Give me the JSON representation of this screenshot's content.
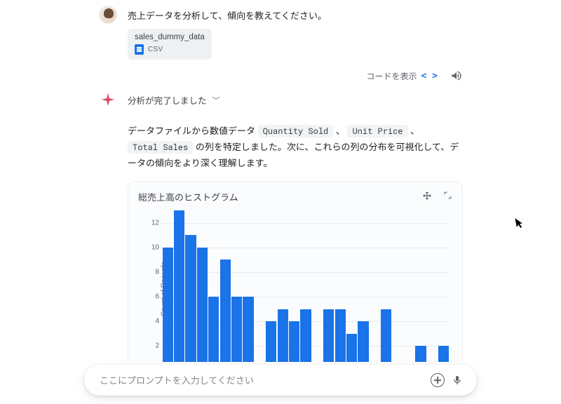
{
  "user": {
    "message": "売上データを分析して、傾向を教えてください。"
  },
  "attachment": {
    "filename": "sales_dummy_data",
    "ext": "CSV"
  },
  "actions": {
    "show_code": "コードを表示"
  },
  "assistant": {
    "status": "分析が完了しました",
    "text_pre": "データファイルから数値データ ",
    "code1": "Quantity Sold",
    "sep1": " 、 ",
    "code2": "Unit Price",
    "sep2": " 、 ",
    "code3": "Total Sales",
    "text_post": " の列を特定しました。次に、これらの列の分布を可視化して、データの傾向をより深く理解します。"
  },
  "chart": {
    "type": "histogram",
    "title": "総売上高のヒストグラム",
    "ylabel": "Count of Records",
    "ylim_max": 13,
    "y_ticks": [
      2,
      4,
      6,
      8,
      10,
      12
    ],
    "values": [
      10,
      13,
      11,
      10,
      6,
      9,
      6,
      6,
      0,
      4,
      5,
      4,
      5,
      0,
      5,
      5,
      3,
      4,
      0,
      5,
      0,
      0,
      2,
      0,
      2
    ],
    "bar_color": "#1a73e8",
    "grid_color": "#e8eaed",
    "background_color": "#fbfcfe",
    "bar_gap_ratio": 0.08,
    "label_fontsize": 10,
    "title_fontsize": 13
  },
  "prompt": {
    "placeholder": "ここにプロンプトを入力してください"
  }
}
